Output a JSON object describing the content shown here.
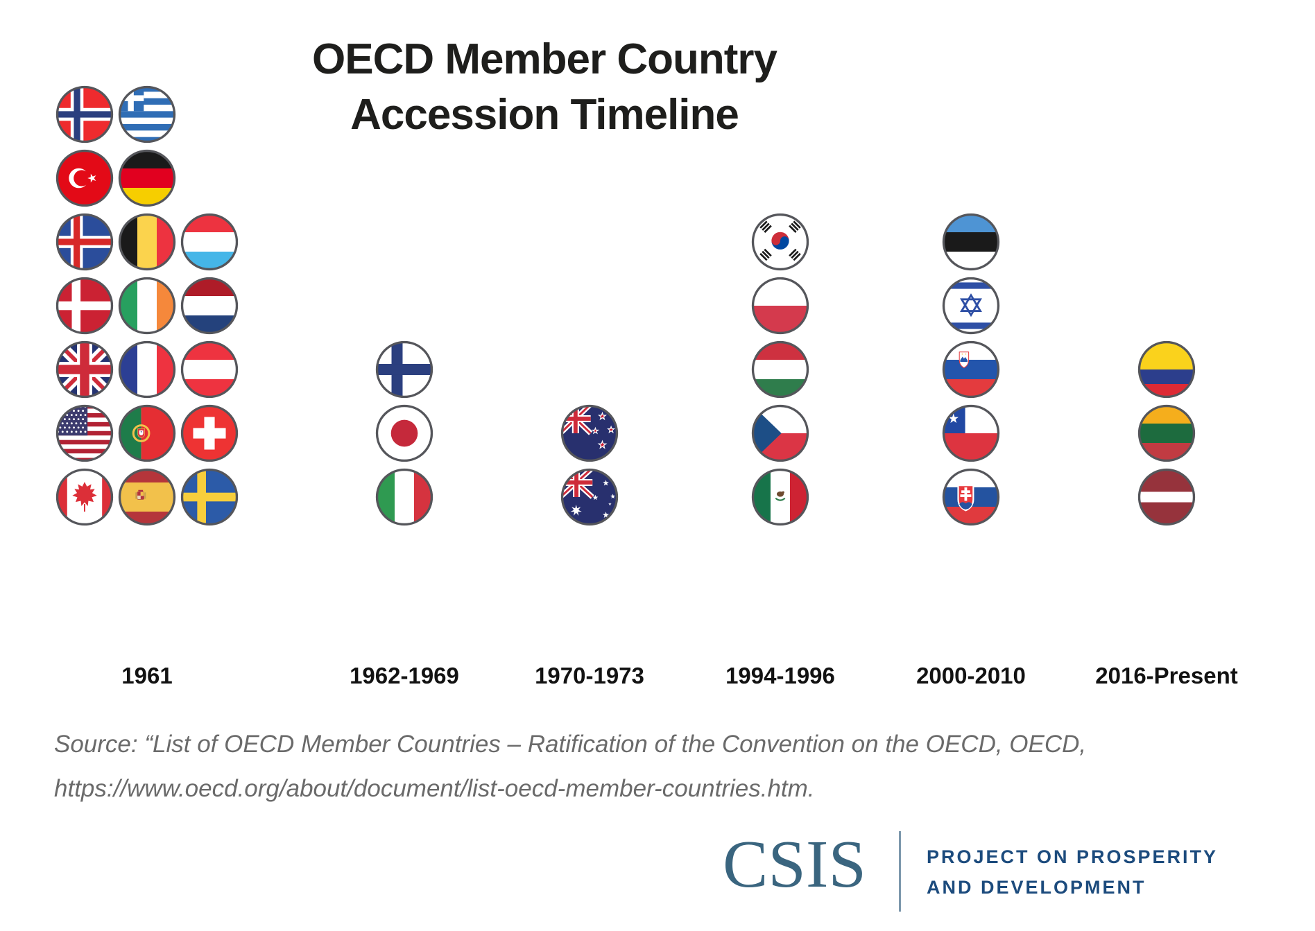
{
  "title": {
    "line1": "OECD Member Country",
    "line2": "Accession Timeline"
  },
  "timeline": {
    "columns": [
      {
        "label": "1961",
        "flag_rows": [
          [
            "norway",
            "greece"
          ],
          [
            "turkey",
            "germany"
          ],
          [
            "iceland",
            "belgium",
            "luxembourg"
          ],
          [
            "denmark",
            "ireland",
            "netherlands"
          ],
          [
            "united-kingdom",
            "france",
            "austria"
          ],
          [
            "united-states",
            "portugal",
            "switzerland"
          ],
          [
            "canada",
            "spain",
            "sweden"
          ]
        ]
      },
      {
        "label": "1962-1969",
        "flag_rows": [
          [],
          [],
          [],
          [],
          [
            "finland"
          ],
          [
            "japan"
          ],
          [
            "italy"
          ]
        ]
      },
      {
        "label": "1970-1973",
        "flag_rows": [
          [],
          [],
          [],
          [],
          [],
          [
            "new-zealand"
          ],
          [
            "australia"
          ]
        ]
      },
      {
        "label": "1994-1996",
        "flag_rows": [
          [],
          [],
          [
            "south-korea"
          ],
          [
            "poland"
          ],
          [
            "hungary"
          ],
          [
            "czech-republic"
          ],
          [
            "mexico"
          ]
        ]
      },
      {
        "label": "2000-2010",
        "flag_rows": [
          [],
          [],
          [
            "estonia"
          ],
          [
            "israel"
          ],
          [
            "slovenia"
          ],
          [
            "chile"
          ],
          [
            "slovakia"
          ]
        ]
      },
      {
        "label": "2016-Present",
        "flag_rows": [
          [],
          [],
          [],
          [],
          [
            "colombia"
          ],
          [
            "lithuania"
          ],
          [
            "latvia"
          ]
        ]
      }
    ]
  },
  "countries": {
    "norway": "Norway",
    "greece": "Greece",
    "turkey": "Turkey",
    "germany": "Germany",
    "iceland": "Iceland",
    "belgium": "Belgium",
    "luxembourg": "Luxembourg",
    "denmark": "Denmark",
    "ireland": "Ireland",
    "netherlands": "Netherlands",
    "united-kingdom": "United Kingdom",
    "france": "France",
    "austria": "Austria",
    "united-states": "United States",
    "portugal": "Portugal",
    "switzerland": "Switzerland",
    "canada": "Canada",
    "spain": "Spain",
    "sweden": "Sweden",
    "finland": "Finland",
    "japan": "Japan",
    "italy": "Italy",
    "new-zealand": "New Zealand",
    "australia": "Australia",
    "south-korea": "South Korea",
    "poland": "Poland",
    "hungary": "Hungary",
    "czech-republic": "Czech Republic",
    "mexico": "Mexico",
    "estonia": "Estonia",
    "israel": "Israel",
    "slovenia": "Slovenia",
    "chile": "Chile",
    "slovakia": "Slovakia",
    "colombia": "Colombia",
    "lithuania": "Lithuania",
    "latvia": "Latvia"
  },
  "chart_data": {
    "type": "table",
    "title": "OECD Member Country Accession Timeline",
    "categories": [
      "1961",
      "1962-1969",
      "1970-1973",
      "1994-1996",
      "2000-2010",
      "2016-Present"
    ],
    "values": [
      19,
      3,
      2,
      5,
      5,
      3
    ],
    "members": {
      "1961": [
        "Norway",
        "Greece",
        "Turkey",
        "Germany",
        "Iceland",
        "Belgium",
        "Luxembourg",
        "Denmark",
        "Ireland",
        "Netherlands",
        "United Kingdom",
        "France",
        "Austria",
        "United States",
        "Portugal",
        "Switzerland",
        "Canada",
        "Spain",
        "Sweden"
      ],
      "1962-1969": [
        "Finland",
        "Japan",
        "Italy"
      ],
      "1970-1973": [
        "New Zealand",
        "Australia"
      ],
      "1994-1996": [
        "South Korea",
        "Poland",
        "Hungary",
        "Czech Republic",
        "Mexico"
      ],
      "2000-2010": [
        "Estonia",
        "Israel",
        "Slovenia",
        "Chile",
        "Slovakia"
      ],
      "2016-Present": [
        "Colombia",
        "Lithuania",
        "Latvia"
      ]
    },
    "legend_position": "none",
    "grid": false
  },
  "source": {
    "line1": "Source: “List of OECD Member Countries – Ratification of the Convention on the OECD, OECD,",
    "line2": "https://www.oecd.org/about/document/list-oecd-member-countries.htm."
  },
  "footer": {
    "wordmark": "CSIS",
    "program_line1": "PROJECT ON PROSPERITY",
    "program_line2": "AND DEVELOPMENT"
  },
  "colors": {
    "title_text": "#1e1e1c",
    "label_text": "#121212",
    "source_text": "#6a6a6a",
    "flag_ring": "#55565b",
    "csis_wordmark_blue": "#3a657f",
    "program_navy": "#1c4b7d",
    "divider_blue_gray": "#7c97ac",
    "background": "#ffffff"
  }
}
